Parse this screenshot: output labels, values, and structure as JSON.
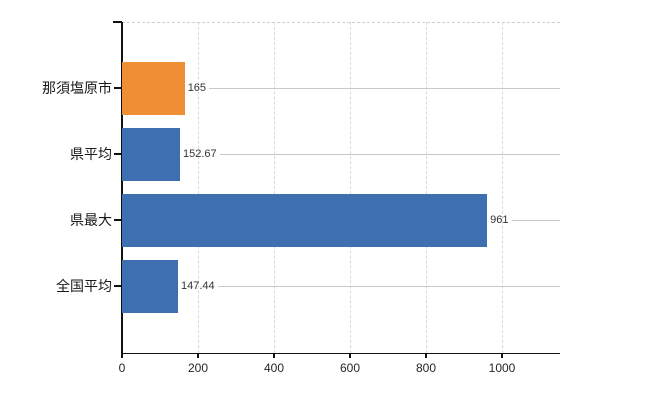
{
  "chart_data": {
    "type": "bar",
    "orientation": "horizontal",
    "title": "",
    "xlabel": "",
    "ylabel": "",
    "categories": [
      "那須塩原市",
      "県平均",
      "県最大",
      "全国平均"
    ],
    "values": [
      165,
      152.67,
      961,
      147.44
    ],
    "value_labels": [
      "165",
      "152.67",
      "961",
      "147.44"
    ],
    "bar_colors": [
      "#EE8F35",
      "#3E6FB0",
      "#3E6FB0",
      "#3E6FB0"
    ],
    "x_ticks": [
      0,
      200,
      400,
      600,
      800,
      1000
    ],
    "x_tick_labels": [
      "0",
      "200",
      "400",
      "600",
      "800",
      "1000"
    ],
    "xlim": [
      0,
      1152
    ],
    "grid": "vertical dashed gridlines at ticks; dashed top border; light leader line from each value label to right edge",
    "legend": "none",
    "palette": {
      "bar_orange": "#EE8F35",
      "bar_blue": "#3E6FB0",
      "axis": "#111111",
      "gridline": "#D9D9D9",
      "leader_line": "#C8C8C8",
      "tick_text": "#262626",
      "value_text": "#333333",
      "background": "#FFFFFF"
    }
  }
}
